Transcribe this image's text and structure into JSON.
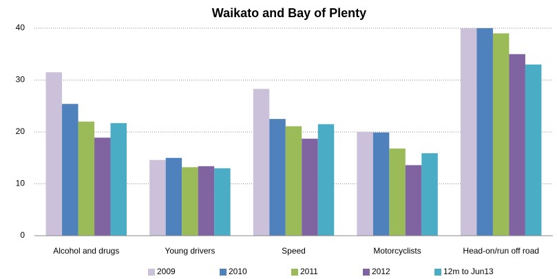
{
  "chart_data": {
    "type": "bar",
    "title": "Waikato and Bay of Plenty",
    "categories": [
      "Alcohol and drugs",
      "Young drivers",
      "Speed",
      "Motorcyclists",
      "Head-on/run off road"
    ],
    "series": [
      {
        "name": "2009",
        "color": "#ccc1da",
        "values": [
          31.5,
          14.6,
          28.3,
          20.0,
          40.0
        ]
      },
      {
        "name": "2010",
        "color": "#4f81bd",
        "values": [
          25.4,
          15.0,
          22.5,
          19.9,
          40.0
        ]
      },
      {
        "name": "2011",
        "color": "#9bbb59",
        "values": [
          22.0,
          13.2,
          21.1,
          16.8,
          39.0
        ]
      },
      {
        "name": "2012",
        "color": "#8064a2",
        "values": [
          18.9,
          13.4,
          18.7,
          13.6,
          35.0
        ]
      },
      {
        "name": "12m to Jun13",
        "color": "#4bacc6",
        "values": [
          21.7,
          13.0,
          21.5,
          15.9,
          33.0
        ]
      }
    ],
    "ylim": [
      0,
      40
    ],
    "yticks": [
      0,
      10,
      20,
      30,
      40
    ],
    "grid": true,
    "legend": "bottom"
  }
}
